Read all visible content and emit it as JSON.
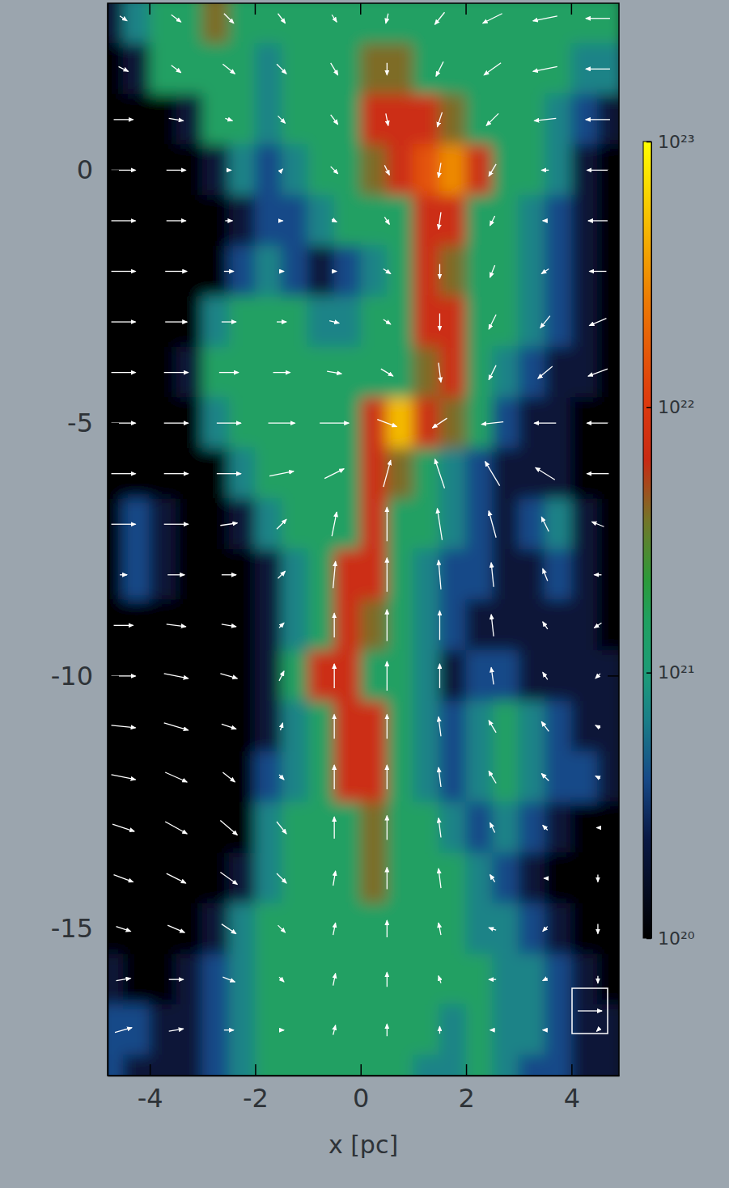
{
  "chart_data": {
    "type": "heatmap",
    "xlabel": "x [pc]",
    "xlim": [
      -4.8,
      4.9
    ],
    "ylim": [
      -17.9,
      3.3
    ],
    "xticks": [
      -4,
      -2,
      0,
      2,
      4
    ],
    "yticks": [
      0,
      -5,
      -10,
      -15
    ],
    "density": {
      "x": [
        -4.75,
        -4.25,
        -3.75,
        -3.25,
        -2.75,
        -2.25,
        -1.75,
        -1.25,
        -0.75,
        -0.25,
        0.25,
        0.75,
        1.25,
        1.75,
        2.25,
        2.75,
        3.25,
        3.75,
        4.25,
        4.75
      ],
      "y": [
        3,
        2,
        1,
        0,
        -1,
        -2,
        -3,
        -4,
        -5,
        -6,
        -7,
        -8,
        -9,
        -10,
        -11,
        -12,
        -13,
        -14,
        -15,
        -16,
        -17,
        -18
      ],
      "values": [
        [
          2e+20,
          7e+20,
          1.5e+21,
          1.5e+21,
          4e+21,
          1.5e+21,
          1.5e+21,
          1.5e+21,
          1.5e+21,
          1.5e+21,
          1.5e+21,
          1.5e+21,
          1.5e+21,
          1.5e+21,
          1.5e+21,
          1.5e+21,
          1.5e+21,
          1.5e+21,
          1.5e+21,
          1.5e+21
        ],
        [
          1e+20,
          2e+20,
          1.5e+21,
          1.5e+21,
          1.5e+21,
          1.5e+21,
          7e+20,
          1.5e+21,
          1.5e+21,
          1.5e+21,
          4e+21,
          4e+21,
          1.5e+21,
          1.5e+21,
          1.5e+21,
          1.5e+21,
          1.5e+21,
          1.5e+21,
          7e+20,
          7e+20
        ],
        [
          1e+20,
          1e+20,
          1e+20,
          2e+20,
          1.5e+21,
          1.5e+21,
          7e+20,
          1.5e+21,
          1.5e+21,
          1.5e+21,
          7e+21,
          7e+21,
          7e+21,
          4e+21,
          1.5e+21,
          1.5e+21,
          1.5e+21,
          7e+20,
          4e+20,
          2e+20
        ],
        [
          1e+20,
          1e+20,
          1e+20,
          1e+20,
          2e+20,
          7e+20,
          4e+20,
          7e+20,
          1.5e+21,
          1.5e+21,
          4e+21,
          7e+21,
          1.5e+22,
          3e+22,
          7e+21,
          1.5e+21,
          1.5e+21,
          7e+20,
          2e+20,
          1e+20
        ],
        [
          1e+20,
          1e+20,
          1e+20,
          1e+20,
          1e+20,
          2e+20,
          4e+20,
          4e+20,
          7e+20,
          1.5e+21,
          1.5e+21,
          1.5e+21,
          7e+21,
          7e+21,
          1.5e+21,
          1.5e+21,
          7e+20,
          4e+20,
          2e+20,
          1e+20
        ],
        [
          1e+20,
          1e+20,
          1e+20,
          1e+20,
          1e+20,
          4e+20,
          7e+20,
          4e+20,
          2e+20,
          4e+20,
          7e+20,
          1.5e+21,
          7e+21,
          4e+21,
          1.5e+21,
          1.5e+21,
          7e+20,
          4e+20,
          2e+20,
          1e+20
        ],
        [
          1e+20,
          1e+20,
          1e+20,
          1e+20,
          7e+20,
          1.5e+21,
          1.5e+21,
          1.5e+21,
          7e+20,
          7e+20,
          1.5e+21,
          1.5e+21,
          7e+21,
          7e+21,
          1.5e+21,
          1.5e+21,
          7e+20,
          4e+20,
          2e+20,
          1e+20
        ],
        [
          1e+20,
          1e+20,
          1e+20,
          2e+20,
          1.5e+21,
          1.5e+21,
          1.5e+21,
          1.5e+21,
          1.5e+21,
          1.5e+21,
          1.5e+21,
          1.5e+21,
          4e+21,
          7e+21,
          1.5e+21,
          7e+20,
          4e+20,
          2e+20,
          2e+20,
          1e+20
        ],
        [
          1e+20,
          1e+20,
          1e+20,
          1e+20,
          7e+20,
          1.5e+21,
          1.5e+21,
          1.5e+21,
          1.5e+21,
          1.5e+21,
          7e+21,
          5e+22,
          7e+21,
          4e+21,
          1.5e+21,
          4e+20,
          2e+20,
          2e+20,
          1e+20,
          1e+20
        ],
        [
          1e+20,
          1e+20,
          1e+20,
          1e+20,
          1e+20,
          7e+20,
          1.5e+21,
          1.5e+21,
          1.5e+21,
          1.5e+21,
          7e+21,
          4e+21,
          1.5e+21,
          7e+20,
          4e+20,
          2e+20,
          2e+20,
          2e+20,
          1e+20,
          1e+20
        ],
        [
          1e+20,
          4e+20,
          2e+20,
          1e+20,
          1e+20,
          2e+20,
          7e+20,
          1.5e+21,
          1.5e+21,
          1.5e+21,
          7e+21,
          1.5e+21,
          1.5e+21,
          7e+20,
          4e+20,
          2e+20,
          4e+20,
          7e+20,
          2e+20,
          1e+20
        ],
        [
          1e+20,
          4e+20,
          2e+20,
          1e+20,
          1e+20,
          1e+20,
          2e+20,
          7e+20,
          1.5e+21,
          7e+21,
          7e+21,
          1.5e+21,
          7e+20,
          4e+20,
          4e+20,
          2e+20,
          2e+20,
          4e+20,
          2e+20,
          1e+20
        ],
        [
          1e+20,
          1e+20,
          1e+20,
          1e+20,
          1e+20,
          1e+20,
          2e+20,
          7e+20,
          1.5e+21,
          7e+21,
          4e+21,
          1.5e+21,
          7e+20,
          4e+20,
          2e+20,
          2e+20,
          2e+20,
          2e+20,
          2e+20,
          1e+20
        ],
        [
          1e+20,
          1e+20,
          1e+20,
          1e+20,
          1e+20,
          1e+20,
          2e+20,
          1.5e+21,
          7e+21,
          7e+21,
          1.5e+21,
          1.5e+21,
          7e+20,
          2e+20,
          4e+20,
          4e+20,
          2e+20,
          2e+20,
          2e+20,
          2e+20
        ],
        [
          1e+20,
          1e+20,
          1e+20,
          1e+20,
          1e+20,
          1e+20,
          2e+20,
          7e+20,
          1.5e+21,
          7e+21,
          7e+21,
          1.5e+21,
          7e+20,
          4e+20,
          7e+20,
          1.5e+21,
          7e+20,
          4e+20,
          2e+20,
          2e+20
        ],
        [
          1e+20,
          1e+20,
          1e+20,
          1e+20,
          1e+20,
          1e+20,
          4e+20,
          7e+20,
          1.5e+21,
          7e+21,
          7e+21,
          1.5e+21,
          7e+20,
          4e+20,
          7e+20,
          1.5e+21,
          7e+20,
          4e+20,
          4e+20,
          2e+20
        ],
        [
          1e+20,
          1e+20,
          1e+20,
          1e+20,
          1e+20,
          1e+20,
          7e+20,
          1.5e+21,
          1.5e+21,
          1.5e+21,
          4e+21,
          1.5e+21,
          1.5e+21,
          7e+20,
          4e+20,
          7e+20,
          4e+20,
          2e+20,
          1e+20,
          1e+20
        ],
        [
          1e+20,
          1e+20,
          1e+20,
          1e+20,
          1e+20,
          2e+20,
          7e+20,
          1.5e+21,
          1.5e+21,
          1.5e+21,
          4e+21,
          1.5e+21,
          1.5e+21,
          1.5e+21,
          7e+20,
          4e+20,
          2e+20,
          1e+20,
          1e+20,
          1e+20
        ],
        [
          1e+20,
          1e+20,
          1e+20,
          1e+20,
          2e+20,
          7e+20,
          1.5e+21,
          1.5e+21,
          1.5e+21,
          1.5e+21,
          1.5e+21,
          1.5e+21,
          1.5e+21,
          1.5e+21,
          7e+20,
          7e+20,
          4e+20,
          2e+20,
          1e+20,
          1e+20
        ],
        [
          2e+20,
          1e+20,
          1e+20,
          2e+20,
          4e+20,
          7e+20,
          1.5e+21,
          1.5e+21,
          1.5e+21,
          1.5e+21,
          1.5e+21,
          1.5e+21,
          1.5e+21,
          1.5e+21,
          1.5e+21,
          7e+20,
          7e+20,
          4e+20,
          2e+20,
          1e+20
        ],
        [
          4e+20,
          4e+20,
          2e+20,
          2e+20,
          4e+20,
          7e+20,
          1.5e+21,
          1.5e+21,
          1.5e+21,
          1.5e+21,
          1.5e+21,
          1.5e+21,
          1.5e+21,
          7e+20,
          1.5e+21,
          7e+20,
          7e+20,
          4e+20,
          2e+20,
          2e+20
        ],
        [
          4e+20,
          2e+20,
          2e+20,
          2e+20,
          4e+20,
          7e+20,
          1.5e+21,
          1.5e+21,
          1.5e+21,
          1.5e+21,
          1.5e+21,
          1.5e+21,
          7e+20,
          7e+20,
          1.5e+21,
          7e+20,
          4e+20,
          4e+20,
          2e+20,
          2e+20
        ]
      ]
    },
    "colorbar": {
      "log": true,
      "range": [
        1e+20,
        1e+23
      ],
      "ticks": [
        {
          "value": 1e+20,
          "label": "10²⁰"
        },
        {
          "value": 1e+21,
          "label": "10²¹"
        },
        {
          "value": 1e+22,
          "label": "10²²"
        },
        {
          "value": 1e+23,
          "label": "10²³"
        }
      ]
    },
    "vectors": {
      "key": 1,
      "x": [
        -4.5,
        -3.5,
        -2.5,
        -1.5,
        -0.5,
        0.5,
        1.5,
        2.5,
        3.5,
        4.5
      ],
      "y": [
        3,
        2,
        1,
        0,
        -1,
        -2,
        -3,
        -4,
        -5,
        -6,
        -7,
        -8,
        -9,
        -10,
        -11,
        -12,
        -13,
        -14,
        -15,
        -16,
        -17
      ],
      "u": [
        [
          0.3,
          0.4,
          0.4,
          0.3,
          0.2,
          -0.1,
          -0.4,
          -0.8,
          -1,
          -1
        ],
        [
          0.4,
          0.4,
          0.5,
          0.4,
          0.3,
          0,
          -0.3,
          -0.7,
          -1,
          -1
        ],
        [
          0.8,
          0.6,
          0.3,
          0.3,
          0.3,
          0.1,
          -0.2,
          -0.5,
          -0.9,
          -1
        ],
        [
          1,
          0.8,
          0.2,
          0.1,
          0.3,
          0.2,
          -0.1,
          -0.3,
          -0.3,
          -0.9
        ],
        [
          1,
          0.8,
          0.3,
          0.1,
          0.2,
          0.2,
          -0.1,
          -0.2,
          -0.2,
          -0.8
        ],
        [
          1,
          0.9,
          0.4,
          0.2,
          0.2,
          0.3,
          0,
          -0.2,
          -0.3,
          -0.7
        ],
        [
          1,
          0.9,
          0.6,
          0.4,
          0.4,
          0.3,
          0,
          -0.3,
          -0.4,
          -0.7
        ],
        [
          1,
          1,
          0.8,
          0.7,
          0.6,
          0.5,
          0.1,
          -0.3,
          -0.6,
          -0.8
        ],
        [
          1,
          1,
          1,
          1.1,
          1.2,
          0.8,
          -0.6,
          -0.9,
          -0.9,
          -0.9
        ],
        [
          1,
          1,
          1,
          1,
          0.8,
          0.3,
          -0.4,
          -0.6,
          -0.8,
          -0.9
        ],
        [
          1,
          1,
          0.7,
          0.4,
          0.2,
          0,
          -0.2,
          -0.3,
          -0.3,
          -0.5
        ],
        [
          0.3,
          0.7,
          0.6,
          0.3,
          0.1,
          0,
          -0.1,
          -0.1,
          -0.2,
          -0.3
        ],
        [
          0.8,
          0.8,
          0.6,
          0.2,
          0,
          0,
          0,
          -0.1,
          -0.2,
          -0.3
        ],
        [
          1,
          1,
          0.7,
          0.2,
          0,
          0,
          0,
          -0.1,
          -0.2,
          -0.2
        ],
        [
          1,
          1,
          0.6,
          0.1,
          0,
          0,
          -0.1,
          -0.3,
          -0.3,
          -0.2
        ],
        [
          1,
          0.9,
          0.5,
          0.2,
          0,
          0,
          -0.1,
          -0.3,
          -0.3,
          -0.2
        ],
        [
          0.9,
          0.9,
          0.7,
          0.4,
          0,
          0,
          -0.1,
          -0.2,
          -0.2,
          -0.1
        ],
        [
          0.8,
          0.8,
          0.7,
          0.4,
          0.1,
          0,
          -0.1,
          -0.2,
          -0.1,
          0
        ],
        [
          0.6,
          0.7,
          0.6,
          0.3,
          0.1,
          0,
          -0.1,
          -0.3,
          -0.2,
          0
        ],
        [
          0.6,
          0.6,
          0.5,
          0.2,
          0.1,
          0,
          -0.1,
          -0.3,
          -0.2,
          0
        ],
        [
          0.7,
          0.6,
          0.4,
          0.2,
          0.1,
          0,
          0,
          -0.2,
          -0.2,
          -0.1
        ]
      ],
      "v": [
        [
          -0.2,
          -0.3,
          -0.4,
          -0.4,
          -0.3,
          -0.4,
          -0.5,
          -0.4,
          -0.2,
          0
        ],
        [
          -0.2,
          -0.3,
          -0.4,
          -0.4,
          -0.5,
          -0.5,
          -0.6,
          -0.5,
          -0.2,
          0
        ],
        [
          0,
          -0.1,
          -0.1,
          -0.3,
          -0.4,
          -0.5,
          -0.6,
          -0.5,
          -0.1,
          0
        ],
        [
          0,
          0,
          0,
          0.1,
          -0.3,
          -0.4,
          -0.6,
          -0.5,
          0,
          0
        ],
        [
          0,
          0,
          0,
          0,
          -0.1,
          -0.3,
          -0.7,
          -0.4,
          0,
          0
        ],
        [
          0,
          0,
          0,
          0,
          0,
          -0.2,
          -0.6,
          -0.5,
          -0.2,
          0
        ],
        [
          0,
          0,
          0,
          0,
          -0.1,
          -0.2,
          -0.7,
          -0.6,
          -0.5,
          -0.3
        ],
        [
          0,
          0,
          0,
          0,
          -0.1,
          -0.3,
          -0.8,
          -0.6,
          -0.5,
          -0.3
        ],
        [
          0,
          0,
          0,
          0,
          0,
          -0.3,
          -0.4,
          -0.1,
          0,
          0
        ],
        [
          0,
          0,
          0,
          0.2,
          0.4,
          1.1,
          1.2,
          1.0,
          0.5,
          0
        ],
        [
          0,
          0,
          0.1,
          0.4,
          1.0,
          1.4,
          1.3,
          1.1,
          0.6,
          0.2
        ],
        [
          0,
          0,
          0,
          0.3,
          1.1,
          1.4,
          1.2,
          1.0,
          0.5,
          0
        ],
        [
          0,
          -0.1,
          -0.1,
          0.2,
          1.0,
          1.3,
          1.2,
          0.9,
          0.3,
          -0.2
        ],
        [
          0,
          -0.2,
          -0.2,
          0.4,
          1.0,
          1.2,
          1.0,
          0.7,
          0.3,
          -0.2
        ],
        [
          -0.1,
          -0.3,
          -0.2,
          0.3,
          1.0,
          1.0,
          0.8,
          0.5,
          0.4,
          0.1
        ],
        [
          -0.2,
          -0.4,
          -0.4,
          -0.2,
          1.0,
          1.0,
          0.8,
          0.5,
          0.3,
          0.1
        ],
        [
          -0.3,
          -0.5,
          -0.6,
          -0.5,
          0.9,
          1.0,
          0.8,
          0.4,
          0.2,
          0
        ],
        [
          -0.3,
          -0.4,
          -0.5,
          -0.4,
          0.6,
          0.9,
          0.8,
          0.3,
          0,
          -0.3
        ],
        [
          -0.2,
          -0.3,
          -0.4,
          -0.3,
          0.5,
          0.7,
          0.5,
          0.1,
          -0.2,
          -0.4
        ],
        [
          0.1,
          0,
          -0.2,
          -0.2,
          0.5,
          0.6,
          0.3,
          0,
          -0.1,
          -0.3
        ],
        [
          0.2,
          0.1,
          0,
          0,
          0.4,
          0.5,
          0.3,
          0,
          0,
          -0.1
        ]
      ]
    }
  }
}
